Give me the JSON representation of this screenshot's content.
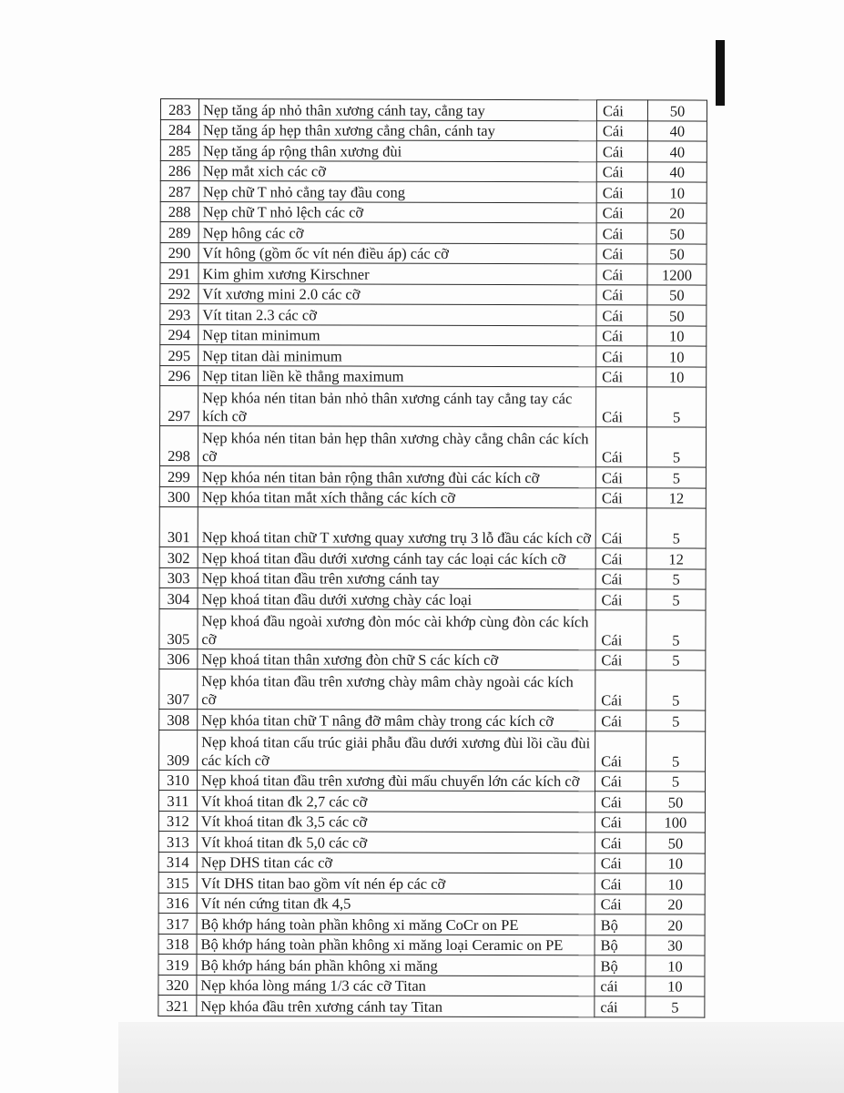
{
  "table": {
    "rows": [
      {
        "no": "283",
        "name": "Nẹp tăng áp nhỏ thân xương cánh tay, cẳng tay",
        "unit": "Cái",
        "qty": "50"
      },
      {
        "no": "284",
        "name": "Nẹp tăng áp hẹp thân xương cẳng chân, cánh tay",
        "unit": "Cái",
        "qty": "40"
      },
      {
        "no": "285",
        "name": "Nẹp tăng áp rộng  thân xương đùi",
        "unit": "Cái",
        "qty": "40"
      },
      {
        "no": "286",
        "name": "Nẹp mắt xich các cỡ",
        "unit": "Cái",
        "qty": "40"
      },
      {
        "no": "287",
        "name": "Nẹp chữ T nhỏ cẳng tay đầu cong",
        "unit": "Cái",
        "qty": "10"
      },
      {
        "no": "288",
        "name": "Nẹp chữ T nhỏ lệch các cỡ",
        "unit": "Cái",
        "qty": "20"
      },
      {
        "no": "289",
        "name": "Nẹp hông các cỡ",
        "unit": "Cái",
        "qty": "50"
      },
      {
        "no": "290",
        "name": "Vít hông (gồm ốc vít nén điều áp) các cỡ",
        "unit": "Cái",
        "qty": "50"
      },
      {
        "no": "291",
        "name": "Kim ghim xương Kirschner",
        "unit": "Cái",
        "qty": "1200"
      },
      {
        "no": "292",
        "name": "Vít xương mini 2.0 các cỡ",
        "unit": "Cái",
        "qty": "50"
      },
      {
        "no": "293",
        "name": "Vít titan 2.3 các cỡ",
        "unit": "Cái",
        "qty": "50"
      },
      {
        "no": "294",
        "name": "Nẹp titan minimum",
        "unit": "Cái",
        "qty": "10"
      },
      {
        "no": "295",
        "name": "Nẹp titan dài minimum",
        "unit": "Cái",
        "qty": "10"
      },
      {
        "no": "296",
        "name": "Nẹp titan liền kề thẳng maximum",
        "unit": "Cái",
        "qty": "10"
      },
      {
        "no": "297",
        "name": "Nẹp khóa nén titan bản nhỏ thân xương cánh tay cẳng tay các kích cỡ",
        "unit": "Cái",
        "qty": "5"
      },
      {
        "no": "298",
        "name": "Nẹp khóa nén titan bản hẹp thân xương chày cẳng chân các kích cỡ",
        "unit": "Cái",
        "qty": "5"
      },
      {
        "no": "299",
        "name": "Nẹp khóa nén titan bản rộng thân xương đùi các kích cỡ",
        "unit": "Cái",
        "qty": "5"
      },
      {
        "no": "300",
        "name": "Nẹp khóa titan mắt xích thẳng các kích cỡ",
        "unit": "Cái",
        "qty": "12"
      },
      {
        "no": "301",
        "name": "Nẹp khoá titan chữ T xương quay xương trụ 3 lỗ đầu các kích cỡ",
        "unit": "Cái",
        "qty": "5"
      },
      {
        "no": "302",
        "name": "Nẹp khoá titan đầu dưới xương cánh tay các loại các kích cỡ",
        "unit": "Cái",
        "qty": "12"
      },
      {
        "no": "303",
        "name": "Nẹp khoá titan đầu trên xương cánh tay",
        "unit": "Cái",
        "qty": "5"
      },
      {
        "no": "304",
        "name": "Nẹp khoá titan đầu dưới xương chày các loại",
        "unit": "Cái",
        "qty": "5"
      },
      {
        "no": "305",
        "name": "Nẹp khoá đầu ngoài xương đòn móc cài khớp cùng đòn các kích cỡ",
        "unit": "Cái",
        "qty": "5"
      },
      {
        "no": "306",
        "name": "Nẹp khoá titan thân xương đòn chữ S các kích cỡ",
        "unit": "Cái",
        "qty": "5"
      },
      {
        "no": "307",
        "name": "Nẹp khóa titan đầu trên xương chày mâm chày ngoài các kích cỡ",
        "unit": "Cái",
        "qty": "5"
      },
      {
        "no": "308",
        "name": "Nẹp khóa titan chữ T nâng đỡ mâm chày trong các kích cỡ",
        "unit": "Cái",
        "qty": "5"
      },
      {
        "no": "309",
        "name": "Nẹp khoá titan cấu trúc giải phẫu đầu dưới xương đùi lồi cầu đùi các kích cỡ",
        "unit": "Cái",
        "qty": "5"
      },
      {
        "no": "310",
        "name": "Nẹp khoá titan đầu trên xương đùi mấu chuyển lớn các kích cỡ",
        "unit": "Cái",
        "qty": "5"
      },
      {
        "no": "311",
        "name": "Vít khoá titan đk 2,7 các cỡ",
        "unit": "Cái",
        "qty": "50"
      },
      {
        "no": "312",
        "name": "Vít khoá titan đk 3,5 các cỡ",
        "unit": "Cái",
        "qty": "100"
      },
      {
        "no": "313",
        "name": "Vít khoá titan đk 5,0 các cỡ",
        "unit": "Cái",
        "qty": "50"
      },
      {
        "no": "314",
        "name": "Nẹp DHS titan các cỡ",
        "unit": "Cái",
        "qty": "10"
      },
      {
        "no": "315",
        "name": "Vít DHS titan bao gồm vít nén ép các cỡ",
        "unit": "Cái",
        "qty": "10"
      },
      {
        "no": "316",
        "name": "Vít nén cứng titan đk 4,5",
        "unit": "Cái",
        "qty": "20"
      },
      {
        "no": "317",
        "name": "Bộ khớp háng toàn phần không xi măng CoCr on PE",
        "unit": "Bộ",
        "qty": "20"
      },
      {
        "no": "318",
        "name": "Bộ khớp háng toàn phần không xi măng loại Ceramic on PE",
        "unit": "Bộ",
        "qty": "30"
      },
      {
        "no": "319",
        "name": "Bộ khớp háng bán phần không xi măng",
        "unit": "Bộ",
        "qty": "10"
      },
      {
        "no": "320",
        "name": "Nẹp khóa lòng máng 1/3 các cỡ Titan",
        "unit": "cái",
        "qty": "10"
      },
      {
        "no": "321",
        "name": "Nẹp khóa đầu trên xương cánh tay Titan",
        "unit": "cái",
        "qty": "5"
      }
    ]
  }
}
